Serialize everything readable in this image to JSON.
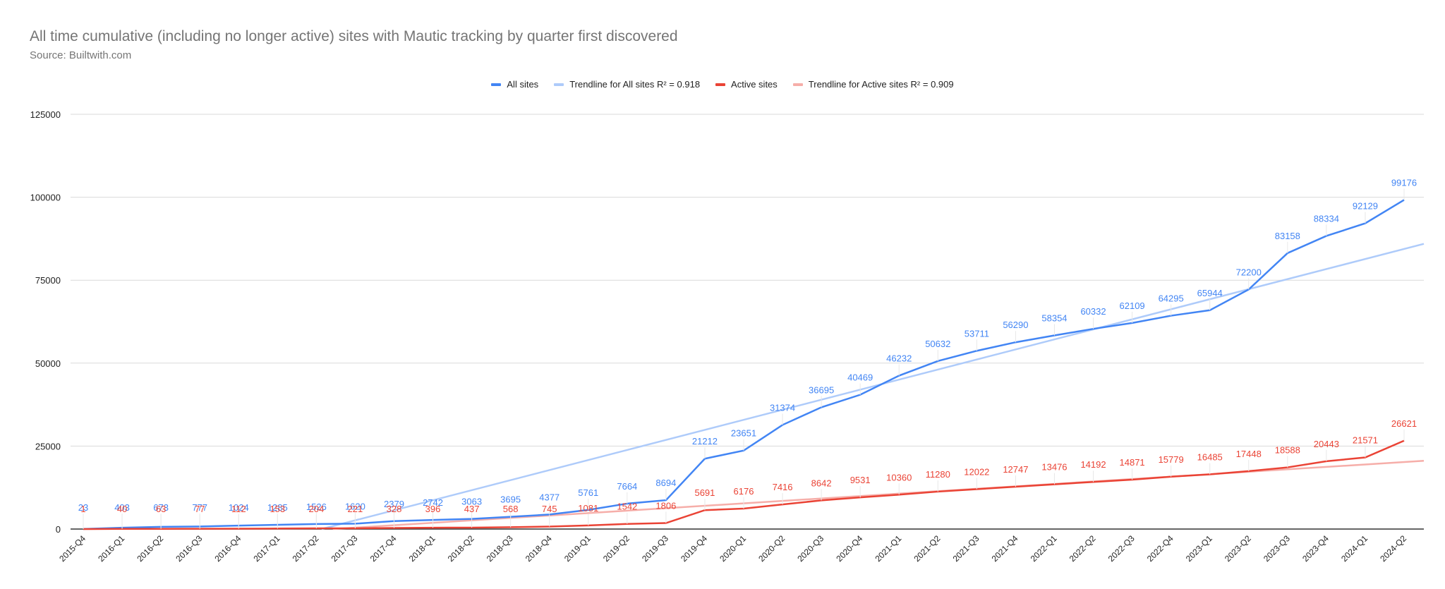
{
  "chart_data": {
    "type": "line",
    "title": "All time cumulative (including no longer active) sites with Mautic tracking by quarter first discovered",
    "subtitle": "Source: Builtwith.com",
    "xlabel": "",
    "ylabel": "",
    "ylim": [
      0,
      125000
    ],
    "yticks": [
      0,
      25000,
      50000,
      75000,
      100000,
      125000
    ],
    "grid": true,
    "legend_position": "top",
    "categories": [
      "2015-Q4",
      "2016-Q1",
      "2016-Q2",
      "2016-Q3",
      "2016-Q4",
      "2017-Q1",
      "2017-Q2",
      "2017-Q3",
      "2017-Q4",
      "2018-Q1",
      "2018-Q2",
      "2018-Q3",
      "2018-Q4",
      "2019-Q1",
      "2019-Q2",
      "2019-Q3",
      "2019-Q4",
      "2020-Q1",
      "2020-Q2",
      "2020-Q3",
      "2020-Q4",
      "2021-Q1",
      "2021-Q2",
      "2021-Q3",
      "2021-Q4",
      "2022-Q1",
      "2022-Q2",
      "2022-Q3",
      "2022-Q4",
      "2023-Q1",
      "2023-Q2",
      "2023-Q3",
      "2023-Q4",
      "2024-Q1",
      "2024-Q2"
    ],
    "series": [
      {
        "name": "All sites",
        "color": "#4285f4",
        "values": [
          23,
          403,
          673,
          777,
          1024,
          1285,
          1526,
          1620,
          2379,
          2742,
          3063,
          3695,
          4377,
          5761,
          7664,
          8694,
          21212,
          23651,
          31374,
          36695,
          40469,
          46232,
          50632,
          53711,
          56290,
          58354,
          60332,
          62109,
          64295,
          65944,
          72200,
          83158,
          88334,
          92129,
          99176
        ]
      },
      {
        "name": "Active sites",
        "color": "#ea4335",
        "values": [
          1,
          40,
          63,
          77,
          112,
          153,
          204,
          221,
          328,
          396,
          437,
          568,
          745,
          1081,
          1542,
          1806,
          5691,
          6176,
          7416,
          8642,
          9531,
          10360,
          11280,
          12022,
          12747,
          13476,
          14192,
          14871,
          15779,
          16485,
          17448,
          18588,
          20443,
          21571,
          26621
        ]
      }
    ],
    "trendlines": [
      {
        "name": "Trendline for All sites R² = 0.918",
        "color": "#aecbfa",
        "r2": 0.918
      },
      {
        "name": "Trendline for Active sites R² = 0.909",
        "color": "#f6aea9",
        "r2": 0.909
      }
    ]
  },
  "legend": [
    {
      "label": "All sites",
      "color": "#4285f4"
    },
    {
      "label": "Trendline for All sites R² = 0.918",
      "color": "#aecbfa"
    },
    {
      "label": "Active sites",
      "color": "#ea4335"
    },
    {
      "label": "Trendline for Active sites R² = 0.909",
      "color": "#f6aea9"
    }
  ]
}
